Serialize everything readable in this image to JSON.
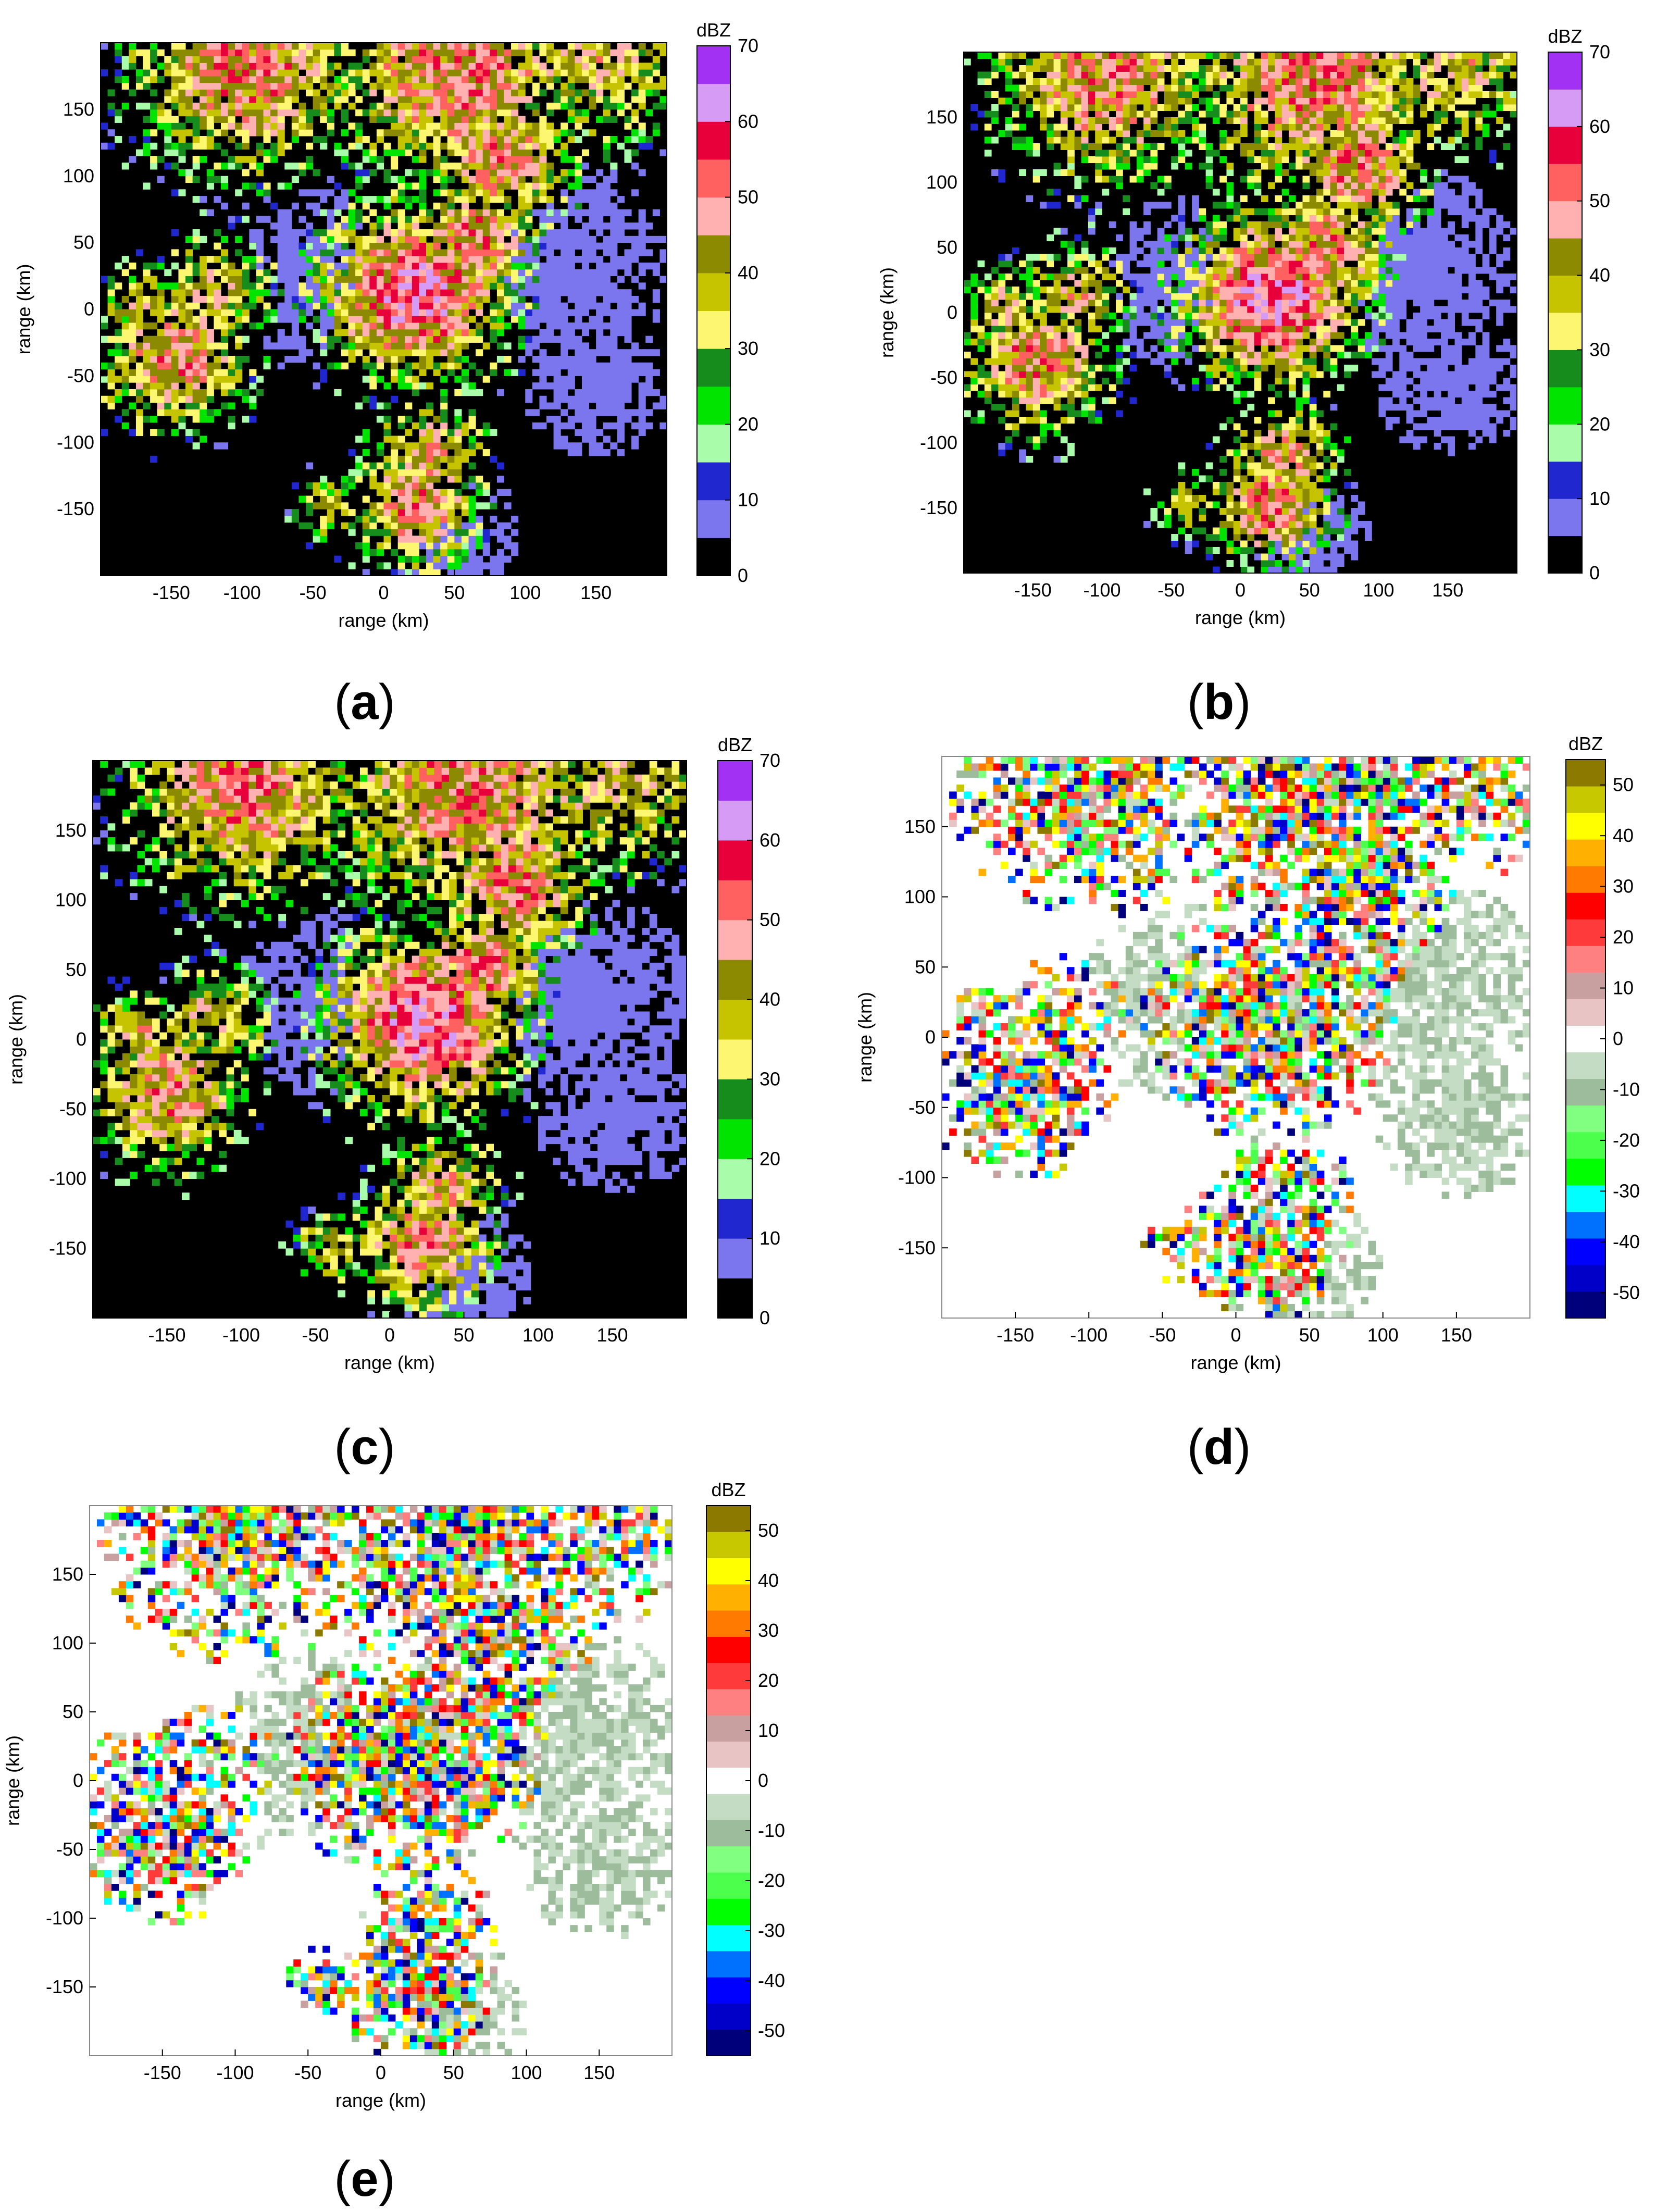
{
  "colors": {
    "background": "#ffffff",
    "reflectivity_scale": [
      "#000000",
      "#7b76ee",
      "#2127cf",
      "#a8fcaa",
      "#00e400",
      "#168c1c",
      "#fdf671",
      "#c6c300",
      "#8c8a00",
      "#ffb0b0",
      "#ff6060",
      "#e8003a",
      "#d69bf4",
      "#a331f4"
    ],
    "difference_scale": [
      "#00007a",
      "#0000c8",
      "#0000ff",
      "#0070ff",
      "#00ffff",
      "#00ff00",
      "#4cff4c",
      "#80ff80",
      "#9cbc9c",
      "#c4dcc4",
      "#ffffff",
      "#e8c4c4",
      "#c8a0a0",
      "#ff8080",
      "#ff3a3a",
      "#ff0000",
      "#ff7a00",
      "#ffb000",
      "#ffff00",
      "#c8c800",
      "#8c7a00"
    ]
  },
  "panels": [
    {
      "label": "(a)",
      "letter": "a"
    },
    {
      "label": "(b)",
      "letter": "b"
    },
    {
      "label": "(c)",
      "letter": "c"
    },
    {
      "label": "(d)",
      "letter": "d"
    },
    {
      "label": "(e)",
      "letter": "e"
    }
  ],
  "chart_data": [
    {
      "type": "heatmap",
      "panel": "a",
      "xlabel": "range (km)",
      "ylabel": "range (km)",
      "xlim": [
        -200,
        200
      ],
      "ylim": [
        -200,
        200
      ],
      "xticks": [
        -150,
        -100,
        -50,
        0,
        50,
        100,
        150
      ],
      "yticks": [
        150,
        100,
        50,
        0,
        -50,
        -100,
        -150
      ],
      "colorbar": {
        "title": "dBZ",
        "min": 0,
        "max": 70,
        "ticks": [
          70,
          60,
          50,
          40,
          30,
          20,
          10,
          0
        ]
      },
      "colormap": "reflectivity_scale"
    },
    {
      "type": "heatmap",
      "panel": "b",
      "xlabel": "range (km)",
      "ylabel": "range (km)",
      "xlim": [
        -200,
        200
      ],
      "ylim": [
        -200,
        200
      ],
      "xticks": [
        -150,
        -100,
        -50,
        0,
        50,
        100,
        150
      ],
      "yticks": [
        150,
        100,
        50,
        0,
        -50,
        -100,
        -150
      ],
      "colorbar": {
        "title": "dBZ",
        "min": 0,
        "max": 70,
        "ticks": [
          70,
          60,
          50,
          40,
          30,
          20,
          10,
          0
        ]
      },
      "colormap": "reflectivity_scale"
    },
    {
      "type": "heatmap",
      "panel": "c",
      "xlabel": "range (km)",
      "ylabel": "range (km)",
      "xlim": [
        -200,
        200
      ],
      "ylim": [
        -200,
        200
      ],
      "xticks": [
        -150,
        -100,
        -50,
        0,
        50,
        100,
        150
      ],
      "yticks": [
        150,
        100,
        50,
        0,
        -50,
        -100,
        -150
      ],
      "colorbar": {
        "title": "dBZ",
        "min": 0,
        "max": 70,
        "ticks": [
          70,
          60,
          50,
          40,
          30,
          20,
          10,
          0
        ]
      },
      "colormap": "reflectivity_scale"
    },
    {
      "type": "heatmap",
      "panel": "d",
      "xlabel": "range (km)",
      "ylabel": "range (km)",
      "xlim": [
        -200,
        200
      ],
      "ylim": [
        -200,
        200
      ],
      "xticks": [
        -150,
        -100,
        -50,
        0,
        50,
        100,
        150
      ],
      "yticks": [
        150,
        100,
        50,
        0,
        -50,
        -100,
        -150
      ],
      "colorbar": {
        "title": "dBZ",
        "min": -55,
        "max": 55,
        "ticks": [
          50,
          40,
          30,
          20,
          10,
          0,
          -10,
          -20,
          -30,
          -40,
          -50
        ]
      },
      "colormap": "difference_scale"
    },
    {
      "type": "heatmap",
      "panel": "e",
      "xlabel": "range (km)",
      "ylabel": "range (km)",
      "xlim": [
        -200,
        200
      ],
      "ylim": [
        -200,
        200
      ],
      "xticks": [
        -150,
        -100,
        -50,
        0,
        50,
        100,
        150
      ],
      "yticks": [
        150,
        100,
        50,
        0,
        -50,
        -100,
        -150
      ],
      "colorbar": {
        "title": "dBZ",
        "min": -55,
        "max": 55,
        "ticks": [
          50,
          40,
          30,
          20,
          10,
          0,
          -10,
          -20,
          -30,
          -40,
          -50
        ]
      },
      "colormap": "difference_scale"
    }
  ]
}
